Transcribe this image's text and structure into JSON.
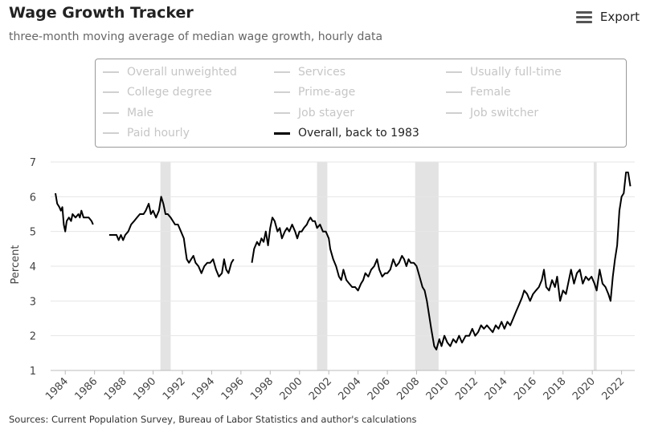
{
  "header": {
    "title": "Wage Growth Tracker",
    "subtitle": "three-month moving average of median wage growth, hourly data",
    "export_label": "Export"
  },
  "legend": {
    "items": [
      {
        "label": "Overall unweighted",
        "active": false
      },
      {
        "label": "Services",
        "active": false
      },
      {
        "label": "Usually full-time",
        "active": false
      },
      {
        "label": "College degree",
        "active": false
      },
      {
        "label": "Prime-age",
        "active": false
      },
      {
        "label": "Female",
        "active": false
      },
      {
        "label": "Male",
        "active": false
      },
      {
        "label": "Job stayer",
        "active": false
      },
      {
        "label": "Job switcher",
        "active": false
      },
      {
        "label": "Paid hourly",
        "active": false
      },
      {
        "label": "Overall, back to 1983",
        "active": true
      }
    ]
  },
  "footer": {
    "source": "Sources: Current Population Survey, Bureau of Labor Statistics and author's calculations"
  },
  "chart_data": {
    "type": "line",
    "title": "Wage Growth Tracker",
    "subtitle": "three-month moving average of median wage growth, hourly data",
    "xlabel": "",
    "ylabel": "Percent",
    "ylim": [
      1,
      7
    ],
    "xlim": [
      1983.0,
      2022.9
    ],
    "yticks": [
      1,
      2,
      3,
      4,
      5,
      6,
      7
    ],
    "xticks": [
      "1984",
      "1986",
      "1988",
      "1990",
      "1992",
      "1994",
      "1996",
      "1998",
      "2000",
      "2002",
      "2004",
      "2006",
      "2008",
      "2010",
      "2012",
      "2014",
      "2016",
      "2018",
      "2020",
      "2022"
    ],
    "grid": true,
    "line_color": "#000000",
    "recession_color": "#e3e3e3",
    "recessions": [
      [
        1990.5,
        1991.2
      ],
      [
        2001.2,
        2001.9
      ],
      [
        2007.9,
        2009.5
      ],
      [
        2020.1,
        2020.3
      ]
    ],
    "series": [
      {
        "name": "Overall, back to 1983",
        "segments": [
          [
            [
              1983.33,
              6.1
            ],
            [
              1983.45,
              5.8
            ],
            [
              1983.6,
              5.7
            ],
            [
              1983.7,
              5.6
            ],
            [
              1983.8,
              5.7
            ],
            [
              1983.9,
              5.2
            ],
            [
              1984.0,
              5.0
            ],
            [
              1984.1,
              5.3
            ],
            [
              1984.25,
              5.4
            ],
            [
              1984.4,
              5.3
            ],
            [
              1984.5,
              5.5
            ],
            [
              1984.7,
              5.4
            ],
            [
              1984.9,
              5.5
            ],
            [
              1985.0,
              5.4
            ],
            [
              1985.1,
              5.6
            ],
            [
              1985.25,
              5.4
            ],
            [
              1985.45,
              5.4
            ],
            [
              1985.6,
              5.4
            ],
            [
              1985.8,
              5.3
            ],
            [
              1985.9,
              5.2
            ]
          ],
          [
            [
              1987.0,
              4.9
            ],
            [
              1987.3,
              4.9
            ],
            [
              1987.5,
              4.9
            ],
            [
              1987.65,
              4.75
            ],
            [
              1987.8,
              4.9
            ],
            [
              1987.95,
              4.75
            ],
            [
              1988.1,
              4.9
            ],
            [
              1988.3,
              5.0
            ],
            [
              1988.5,
              5.2
            ],
            [
              1988.7,
              5.3
            ],
            [
              1988.9,
              5.4
            ],
            [
              1989.1,
              5.5
            ],
            [
              1989.35,
              5.5
            ],
            [
              1989.5,
              5.6
            ],
            [
              1989.7,
              5.8
            ],
            [
              1989.85,
              5.5
            ],
            [
              1990.0,
              5.6
            ],
            [
              1990.2,
              5.4
            ],
            [
              1990.4,
              5.6
            ],
            [
              1990.55,
              6.0
            ],
            [
              1990.7,
              5.8
            ],
            [
              1990.85,
              5.5
            ],
            [
              1991.0,
              5.5
            ],
            [
              1991.2,
              5.4
            ],
            [
              1991.5,
              5.2
            ],
            [
              1991.7,
              5.2
            ],
            [
              1991.9,
              5.0
            ],
            [
              1992.1,
              4.8
            ],
            [
              1992.2,
              4.5
            ],
            [
              1992.3,
              4.2
            ],
            [
              1992.45,
              4.1
            ],
            [
              1992.6,
              4.2
            ],
            [
              1992.75,
              4.3
            ],
            [
              1992.9,
              4.1
            ],
            [
              1993.1,
              4.0
            ],
            [
              1993.3,
              3.8
            ],
            [
              1993.5,
              4.0
            ],
            [
              1993.7,
              4.1
            ],
            [
              1993.9,
              4.1
            ],
            [
              1994.1,
              4.2
            ],
            [
              1994.3,
              3.9
            ],
            [
              1994.5,
              3.7
            ],
            [
              1994.7,
              3.8
            ],
            [
              1994.85,
              4.2
            ],
            [
              1995.0,
              3.9
            ],
            [
              1995.15,
              3.8
            ],
            [
              1995.35,
              4.1
            ],
            [
              1995.5,
              4.2
            ]
          ],
          [
            [
              1996.75,
              4.1
            ],
            [
              1996.9,
              4.5
            ],
            [
              1997.1,
              4.7
            ],
            [
              1997.25,
              4.6
            ],
            [
              1997.4,
              4.8
            ],
            [
              1997.55,
              4.7
            ],
            [
              1997.7,
              5.0
            ],
            [
              1997.85,
              4.6
            ],
            [
              1998.0,
              5.1
            ],
            [
              1998.15,
              5.4
            ],
            [
              1998.3,
              5.3
            ],
            [
              1998.5,
              5.0
            ],
            [
              1998.65,
              5.1
            ],
            [
              1998.8,
              4.8
            ],
            [
              1999.0,
              5.0
            ],
            [
              1999.15,
              5.1
            ],
            [
              1999.3,
              5.0
            ],
            [
              1999.5,
              5.2
            ],
            [
              1999.7,
              5.0
            ],
            [
              1999.85,
              4.8
            ],
            [
              2000.0,
              5.0
            ],
            [
              2000.15,
              5.0
            ],
            [
              2000.3,
              5.1
            ],
            [
              2000.5,
              5.2
            ],
            [
              2000.6,
              5.3
            ],
            [
              2000.75,
              5.4
            ],
            [
              2000.9,
              5.3
            ],
            [
              2001.05,
              5.3
            ],
            [
              2001.2,
              5.1
            ],
            [
              2001.4,
              5.2
            ],
            [
              2001.6,
              5.0
            ],
            [
              2001.8,
              5.0
            ],
            [
              2002.0,
              4.8
            ],
            [
              2002.1,
              4.5
            ],
            [
              2002.3,
              4.2
            ],
            [
              2002.5,
              4.0
            ],
            [
              2002.7,
              3.7
            ],
            [
              2002.85,
              3.6
            ],
            [
              2003.0,
              3.9
            ],
            [
              2003.2,
              3.6
            ],
            [
              2003.4,
              3.5
            ],
            [
              2003.6,
              3.4
            ],
            [
              2003.8,
              3.4
            ],
            [
              2004.0,
              3.3
            ],
            [
              2004.2,
              3.5
            ],
            [
              2004.35,
              3.6
            ],
            [
              2004.5,
              3.8
            ],
            [
              2004.7,
              3.7
            ],
            [
              2004.9,
              3.9
            ],
            [
              2005.1,
              4.0
            ],
            [
              2005.3,
              4.2
            ],
            [
              2005.45,
              3.9
            ],
            [
              2005.65,
              3.7
            ],
            [
              2005.85,
              3.8
            ],
            [
              2006.0,
              3.8
            ],
            [
              2006.2,
              3.9
            ],
            [
              2006.4,
              4.2
            ],
            [
              2006.6,
              4.0
            ],
            [
              2006.8,
              4.1
            ],
            [
              2007.0,
              4.3
            ],
            [
              2007.15,
              4.2
            ],
            [
              2007.3,
              4.0
            ],
            [
              2007.45,
              4.2
            ],
            [
              2007.6,
              4.1
            ],
            [
              2007.8,
              4.1
            ],
            [
              2008.0,
              4.0
            ],
            [
              2008.2,
              3.7
            ],
            [
              2008.4,
              3.4
            ],
            [
              2008.55,
              3.3
            ],
            [
              2008.7,
              3.0
            ],
            [
              2008.85,
              2.6
            ],
            [
              2009.0,
              2.2
            ],
            [
              2009.2,
              1.7
            ],
            [
              2009.35,
              1.6
            ],
            [
              2009.55,
              1.9
            ],
            [
              2009.7,
              1.7
            ],
            [
              2009.9,
              2.0
            ],
            [
              2010.1,
              1.8
            ],
            [
              2010.3,
              1.7
            ],
            [
              2010.5,
              1.9
            ],
            [
              2010.7,
              1.8
            ],
            [
              2010.9,
              2.0
            ],
            [
              2011.1,
              1.8
            ],
            [
              2011.35,
              2.0
            ],
            [
              2011.6,
              2.0
            ],
            [
              2011.8,
              2.2
            ],
            [
              2012.0,
              2.0
            ],
            [
              2012.2,
              2.1
            ],
            [
              2012.4,
              2.3
            ],
            [
              2012.6,
              2.2
            ],
            [
              2012.8,
              2.3
            ],
            [
              2013.0,
              2.2
            ],
            [
              2013.2,
              2.1
            ],
            [
              2013.4,
              2.3
            ],
            [
              2013.6,
              2.2
            ],
            [
              2013.8,
              2.4
            ],
            [
              2014.0,
              2.2
            ],
            [
              2014.2,
              2.4
            ],
            [
              2014.4,
              2.3
            ],
            [
              2014.6,
              2.5
            ],
            [
              2014.8,
              2.7
            ],
            [
              2015.0,
              2.9
            ],
            [
              2015.2,
              3.1
            ],
            [
              2015.35,
              3.3
            ],
            [
              2015.55,
              3.2
            ],
            [
              2015.75,
              3.0
            ],
            [
              2015.95,
              3.2
            ],
            [
              2016.15,
              3.3
            ],
            [
              2016.35,
              3.4
            ],
            [
              2016.55,
              3.6
            ],
            [
              2016.7,
              3.9
            ],
            [
              2016.85,
              3.4
            ],
            [
              2017.05,
              3.3
            ],
            [
              2017.25,
              3.6
            ],
            [
              2017.45,
              3.4
            ],
            [
              2017.6,
              3.7
            ],
            [
              2017.8,
              3.0
            ],
            [
              2018.0,
              3.3
            ],
            [
              2018.2,
              3.2
            ],
            [
              2018.4,
              3.6
            ],
            [
              2018.55,
              3.9
            ],
            [
              2018.75,
              3.5
            ],
            [
              2018.95,
              3.8
            ],
            [
              2019.15,
              3.9
            ],
            [
              2019.35,
              3.5
            ],
            [
              2019.55,
              3.7
            ],
            [
              2019.75,
              3.6
            ],
            [
              2019.95,
              3.7
            ],
            [
              2020.15,
              3.5
            ],
            [
              2020.3,
              3.3
            ],
            [
              2020.5,
              3.9
            ],
            [
              2020.7,
              3.5
            ],
            [
              2020.9,
              3.4
            ],
            [
              2021.1,
              3.2
            ],
            [
              2021.25,
              3.0
            ],
            [
              2021.4,
              3.7
            ],
            [
              2021.55,
              4.2
            ],
            [
              2021.7,
              4.6
            ],
            [
              2021.85,
              5.6
            ],
            [
              2022.0,
              6.0
            ],
            [
              2022.15,
              6.1
            ],
            [
              2022.3,
              6.7
            ],
            [
              2022.45,
              6.7
            ],
            [
              2022.6,
              6.3
            ]
          ]
        ]
      }
    ]
  }
}
